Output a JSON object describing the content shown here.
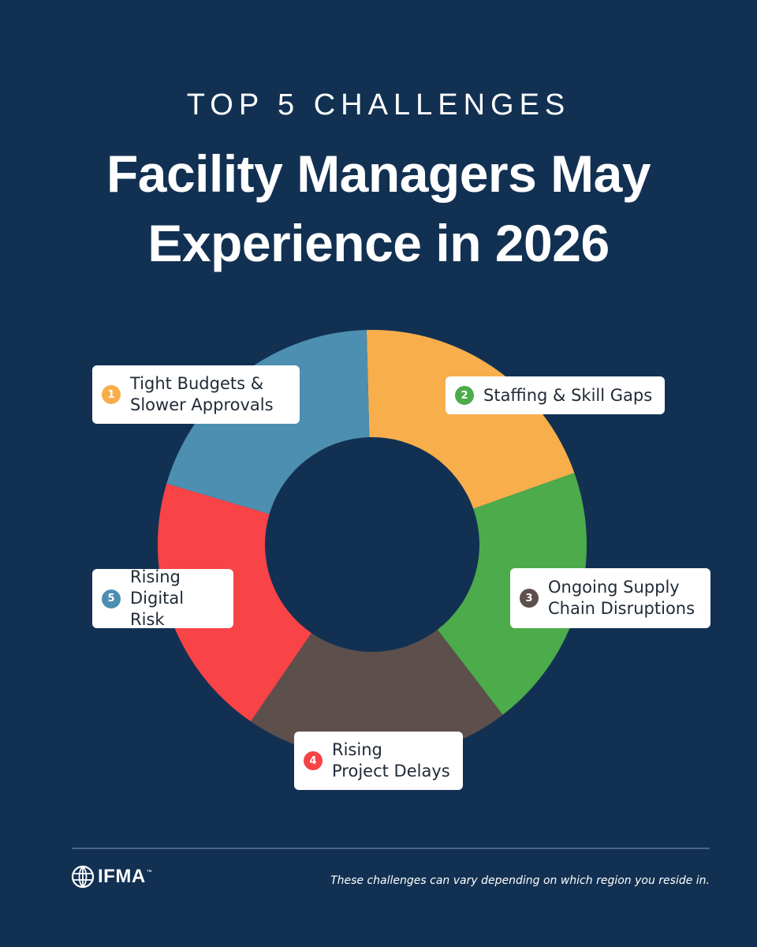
{
  "kicker": "TOP 5 CHALLENGES",
  "title": {
    "line1": "Facility Managers May",
    "line2": "Experience in 2026"
  },
  "chart_data": {
    "type": "pie",
    "style": "donut",
    "values_note_unlabeled": true,
    "slices": [
      {
        "number": "1",
        "line1": "Tight Budgets &",
        "line2": "Slower Approvals",
        "value": 20,
        "color": "#f9ae4c"
      },
      {
        "number": "2",
        "line1": "Staffing & Skill Gaps",
        "line2": "",
        "value": 20,
        "color": "#4cab4a"
      },
      {
        "number": "3",
        "line1": "Ongoing Supply",
        "line2": "Chain Disruptions",
        "value": 20,
        "color": "#5d4f4c"
      },
      {
        "number": "4",
        "line1": "Rising",
        "line2": "Project Delays",
        "value": 20,
        "color": "#f84347"
      },
      {
        "number": "5",
        "line1": "Rising",
        "line2": "Digital Risk",
        "value": 20,
        "color": "#4d8fb1"
      }
    ]
  },
  "footer": {
    "logo_text": "IFMA",
    "logo_tm": "™",
    "note": "These challenges can vary depending on which region you reside in."
  }
}
